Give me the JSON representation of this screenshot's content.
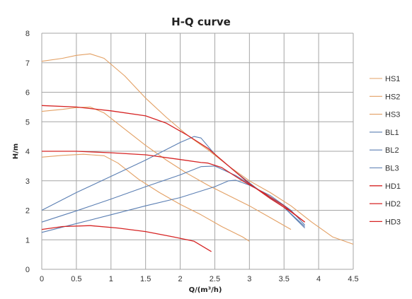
{
  "chart_data": {
    "type": "line",
    "title": "H-Q  curve",
    "xlabel": "Q/(m³/h)",
    "ylabel": "H/m",
    "xlim": [
      0,
      4.5
    ],
    "ylim": [
      0,
      8
    ],
    "xticks": [
      "0",
      "0.5",
      "1",
      "1.5",
      "2",
      "2.5",
      "3",
      "3.5",
      "4",
      "4.5"
    ],
    "yticks": [
      "0",
      "1",
      "2",
      "3",
      "4",
      "5",
      "6",
      "7",
      "8"
    ],
    "grid": true,
    "legend_position": "right",
    "series": [
      {
        "name": "HS1",
        "color": "#e3a064",
        "width": 1.1,
        "points": [
          [
            0,
            7.05
          ],
          [
            0.3,
            7.15
          ],
          [
            0.5,
            7.25
          ],
          [
            0.7,
            7.3
          ],
          [
            0.9,
            7.15
          ],
          [
            1.2,
            6.55
          ],
          [
            1.5,
            5.8
          ],
          [
            1.8,
            5.15
          ],
          [
            2.1,
            4.55
          ],
          [
            2.4,
            4.05
          ],
          [
            2.7,
            3.5
          ],
          [
            3,
            3.0
          ],
          [
            3.3,
            2.6
          ],
          [
            3.6,
            2.15
          ],
          [
            3.9,
            1.6
          ],
          [
            4.2,
            1.1
          ],
          [
            4.5,
            0.85
          ]
        ]
      },
      {
        "name": "HS2",
        "color": "#e3a064",
        "width": 1.1,
        "points": [
          [
            0,
            5.35
          ],
          [
            0.3,
            5.42
          ],
          [
            0.5,
            5.48
          ],
          [
            0.7,
            5.5
          ],
          [
            0.9,
            5.3
          ],
          [
            1.2,
            4.75
          ],
          [
            1.5,
            4.2
          ],
          [
            1.8,
            3.7
          ],
          [
            2.1,
            3.25
          ],
          [
            2.4,
            2.85
          ],
          [
            2.7,
            2.5
          ],
          [
            3,
            2.15
          ],
          [
            3.3,
            1.75
          ],
          [
            3.6,
            1.35
          ]
        ]
      },
      {
        "name": "HS3",
        "color": "#e3a064",
        "width": 1.1,
        "points": [
          [
            0,
            3.8
          ],
          [
            0.3,
            3.86
          ],
          [
            0.6,
            3.9
          ],
          [
            0.9,
            3.85
          ],
          [
            1.1,
            3.6
          ],
          [
            1.4,
            3.05
          ],
          [
            1.7,
            2.6
          ],
          [
            2,
            2.2
          ],
          [
            2.3,
            1.85
          ],
          [
            2.6,
            1.45
          ],
          [
            2.9,
            1.1
          ],
          [
            3,
            0.95
          ]
        ]
      },
      {
        "name": "BL1",
        "color": "#5b7fb3",
        "width": 1.1,
        "points": [
          [
            0,
            2.0
          ],
          [
            0.5,
            2.6
          ],
          [
            1,
            3.15
          ],
          [
            1.5,
            3.7
          ],
          [
            2,
            4.3
          ],
          [
            2.2,
            4.5
          ],
          [
            2.3,
            4.45
          ],
          [
            2.5,
            3.9
          ],
          [
            2.8,
            3.3
          ],
          [
            3.1,
            2.75
          ],
          [
            3.5,
            2.1
          ],
          [
            3.8,
            1.4
          ]
        ]
      },
      {
        "name": "BL2",
        "color": "#5b7fb3",
        "width": 1.1,
        "points": [
          [
            0,
            1.6
          ],
          [
            0.5,
            1.98
          ],
          [
            1,
            2.38
          ],
          [
            1.5,
            2.8
          ],
          [
            2,
            3.2
          ],
          [
            2.3,
            3.48
          ],
          [
            2.5,
            3.5
          ],
          [
            2.8,
            3.18
          ],
          [
            3.1,
            2.75
          ],
          [
            3.5,
            2.1
          ],
          [
            3.8,
            1.45
          ]
        ]
      },
      {
        "name": "BL3",
        "color": "#5b7fb3",
        "width": 1.1,
        "points": [
          [
            0,
            1.25
          ],
          [
            0.5,
            1.55
          ],
          [
            1,
            1.85
          ],
          [
            1.5,
            2.15
          ],
          [
            2,
            2.43
          ],
          [
            2.5,
            2.8
          ],
          [
            2.7,
            3.0
          ],
          [
            2.8,
            3.02
          ],
          [
            3,
            2.85
          ],
          [
            3.3,
            2.5
          ],
          [
            3.6,
            2.0
          ],
          [
            3.8,
            1.5
          ]
        ]
      },
      {
        "name": "HD1",
        "color": "#d62424",
        "width": 1.3,
        "points": [
          [
            0,
            5.55
          ],
          [
            0.5,
            5.5
          ],
          [
            1,
            5.37
          ],
          [
            1.5,
            5.2
          ],
          [
            1.8,
            4.95
          ],
          [
            2.1,
            4.55
          ],
          [
            2.4,
            4.1
          ],
          [
            2.7,
            3.5
          ],
          [
            3,
            2.9
          ],
          [
            3.3,
            2.4
          ],
          [
            3.6,
            1.95
          ],
          [
            3.8,
            1.6
          ]
        ]
      },
      {
        "name": "HD2",
        "color": "#d62424",
        "width": 1.3,
        "points": [
          [
            0,
            4.0
          ],
          [
            0.5,
            4.0
          ],
          [
            1,
            3.95
          ],
          [
            1.5,
            3.88
          ],
          [
            2,
            3.72
          ],
          [
            2.3,
            3.62
          ],
          [
            2.4,
            3.6
          ],
          [
            2.6,
            3.45
          ],
          [
            2.9,
            3.0
          ],
          [
            3.2,
            2.6
          ],
          [
            3.5,
            2.15
          ],
          [
            3.8,
            1.6
          ]
        ]
      },
      {
        "name": "HD3",
        "color": "#d62424",
        "width": 1.3,
        "points": [
          [
            0,
            1.35
          ],
          [
            0.3,
            1.45
          ],
          [
            0.7,
            1.48
          ],
          [
            1.1,
            1.4
          ],
          [
            1.5,
            1.28
          ],
          [
            1.9,
            1.1
          ],
          [
            2.2,
            0.95
          ],
          [
            2.45,
            0.6
          ]
        ]
      }
    ]
  }
}
